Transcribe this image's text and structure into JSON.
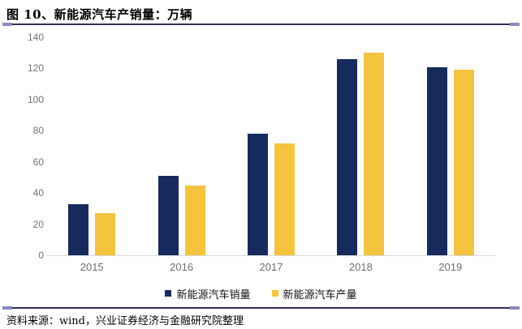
{
  "header": {
    "title": "图 10、新能源汽车产销量：万辆"
  },
  "footer": {
    "source_note": "资料来源：wind，兴业证券经济与金融研究院整理"
  },
  "colors": {
    "sales_navy": "#162a5e",
    "production_yellow": "#f5c43e",
    "rule": "#30305a",
    "rule_cap": "#8a8abf",
    "axis_text_gray": "#737373",
    "axis_line_gray": "#d9d9d9"
  },
  "chart_data": {
    "type": "bar",
    "title": "新能源汽车产销量：万辆",
    "categories": [
      "2015",
      "2016",
      "2017",
      "2018",
      "2019"
    ],
    "series": [
      {
        "name": "新能源汽车销量",
        "color": "#162a5e",
        "values": [
          33,
          51,
          78,
          126,
          121
        ]
      },
      {
        "name": "新能源汽车产量",
        "color": "#f5c43e",
        "values": [
          27,
          45,
          72,
          130,
          119
        ]
      }
    ],
    "xlabel": "",
    "ylabel": "",
    "ylim": [
      0,
      140
    ],
    "yticks": [
      0,
      20,
      40,
      60,
      80,
      100,
      120,
      140
    ],
    "grid": false,
    "legend_position": "bottom"
  }
}
